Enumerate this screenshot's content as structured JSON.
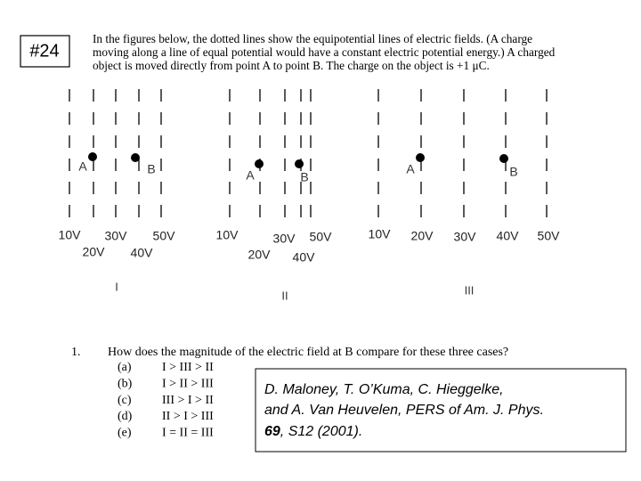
{
  "label": "#24",
  "intro": [
    "In the figures below, the dotted lines show the equipotential lines of electric fields. (A charge",
    "moving along a line of equal potential would have a constant electric potential energy.) A charged",
    "object is moved directly from point A to point B. The charge on the object is +1 μC."
  ],
  "figures": [
    {
      "roman": "I",
      "points": [
        "A",
        "B"
      ],
      "voltages": [
        "10V",
        "20V",
        "30V",
        "40V",
        "50V"
      ]
    },
    {
      "roman": "II",
      "points": [
        "A",
        "B"
      ],
      "voltages": [
        "10V",
        "20V",
        "30V",
        "40V",
        "50V"
      ]
    },
    {
      "roman": "III",
      "points": [
        "A",
        "B"
      ],
      "voltages": [
        "10V",
        "20V",
        "30V",
        "40V",
        "50V"
      ]
    }
  ],
  "question": {
    "number": "1.",
    "text": "How does the magnitude of the electric field at B compare for these three cases?",
    "options": [
      {
        "letter": "(a)",
        "answer": "I > III > II"
      },
      {
        "letter": "(b)",
        "answer": "I > II > III"
      },
      {
        "letter": "(c)",
        "answer": "III > I > II"
      },
      {
        "letter": "(d)",
        "answer": "II > I > III"
      },
      {
        "letter": "(e)",
        "answer": "I = II = III"
      }
    ]
  },
  "citation": {
    "line1": "D. Maloney, T. O’Kuma, C. Hieggelke,",
    "line2": "and A. Van Heuvelen, PERS of Am. J. Phys.",
    "volume": "69",
    "rest": ", S12 (2001)."
  }
}
